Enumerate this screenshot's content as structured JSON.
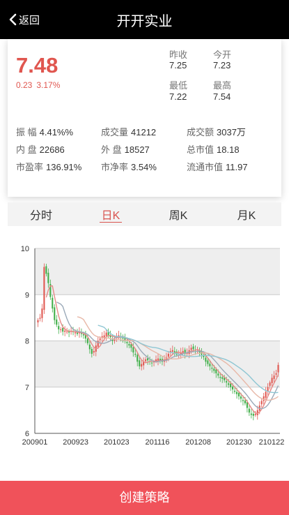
{
  "header": {
    "back_label": "返回",
    "title": "开开实业"
  },
  "quote": {
    "price": "7.48",
    "change": "0.23",
    "change_pct": "3.17%",
    "prev_close_label": "昨收",
    "prev_close": "7.25",
    "open_label": "今开",
    "open": "7.23",
    "low_label": "最低",
    "low": "7.22",
    "high_label": "最高",
    "high": "7.54"
  },
  "stats": [
    {
      "label": "振 幅",
      "value": "4.41%%"
    },
    {
      "label": "成交量",
      "value": "41212"
    },
    {
      "label": "成交额",
      "value": "3037万"
    },
    {
      "label": "内 盘",
      "value": "22686"
    },
    {
      "label": "外 盘",
      "value": "18527"
    },
    {
      "label": "总市值",
      "value": "18.18"
    },
    {
      "label": "市盈率",
      "value": "136.91%"
    },
    {
      "label": "市净率",
      "value": "3.54%"
    },
    {
      "label": "流通市值",
      "value": "11.97"
    }
  ],
  "tabs": [
    {
      "label": "分时",
      "active": false
    },
    {
      "label": "日K",
      "active": true
    },
    {
      "label": "周K",
      "active": false
    },
    {
      "label": "月K",
      "active": false
    }
  ],
  "chart_data": {
    "type": "candlestick",
    "y_ticks": [
      "10",
      "9",
      "8",
      "7",
      "6"
    ],
    "x_ticks": [
      "200901",
      "200923",
      "201023",
      "201116",
      "201208",
      "201230",
      "210122"
    ],
    "ylim": [
      6,
      10
    ],
    "up_color": "#e0564f",
    "down_color": "#3fae48",
    "band_colors": [
      "#eeeeee",
      "#ffffff"
    ],
    "ma_colors": [
      "#e58a86",
      "#9aa9b8",
      "#e8b8a8",
      "#8ec6d3"
    ],
    "close": [
      8.45,
      8.5,
      8.7,
      9.6,
      9.45,
      9.25,
      8.95,
      8.7,
      8.45,
      8.35,
      8.25,
      8.25,
      8.2,
      8.22,
      8.2,
      8.18,
      8.22,
      8.2,
      8.18,
      8.15,
      8.2,
      8.15,
      8.12,
      8.05,
      7.95,
      7.82,
      7.72,
      7.78,
      7.9,
      8.0,
      8.05,
      8.1,
      8.12,
      8.18,
      8.12,
      8.08,
      8.0,
      8.05,
      8.1,
      8.12,
      8.08,
      8.05,
      8.0,
      7.95,
      7.9,
      7.85,
      7.75,
      7.7,
      7.55,
      7.45,
      7.5,
      7.55,
      7.6,
      7.58,
      7.55,
      7.52,
      7.55,
      7.6,
      7.62,
      7.58,
      7.55,
      7.6,
      7.65,
      7.72,
      7.78,
      7.8,
      7.75,
      7.7,
      7.72,
      7.75,
      7.78,
      7.72,
      7.75,
      7.8,
      7.85,
      7.82,
      7.8,
      7.78,
      7.75,
      7.7,
      7.65,
      7.55,
      7.5,
      7.45,
      7.4,
      7.35,
      7.3,
      7.25,
      7.2,
      7.18,
      7.15,
      7.1,
      7.05,
      7.0,
      6.95,
      6.9,
      6.85,
      6.8,
      6.75,
      6.7,
      6.65,
      6.55,
      6.45,
      6.4,
      6.38,
      6.42,
      6.5,
      6.6,
      6.7,
      6.8,
      6.9,
      7.0,
      7.1,
      7.2,
      7.25,
      7.3,
      7.48
    ]
  },
  "actions": {
    "create_strategy": "创建策略"
  }
}
